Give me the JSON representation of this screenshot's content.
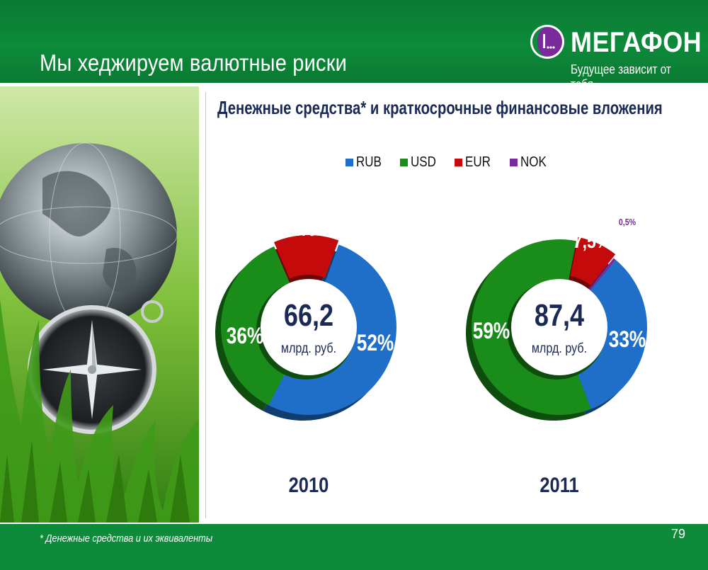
{
  "header": {
    "title": "Мы хеджируем валютные риски",
    "logo_name": "МЕГАФОН",
    "logo_tagline": "Будущее зависит от тебя"
  },
  "footer": {
    "footnote": "* Денежные средства и их эквиваленты",
    "page_number": "79"
  },
  "colors": {
    "header_green": "#0d8a3a",
    "rub": "#1f6fc8",
    "usd": "#1a8c1a",
    "eur": "#c40a0a",
    "nok": "#7a2a9a",
    "label_dark": "#1b2a55"
  },
  "chart_data": {
    "type": "pie",
    "title": "Денежные средства* и краткосрочные финансовые вложения",
    "legend": [
      {
        "name": "RUB",
        "color": "#1f6fc8"
      },
      {
        "name": "USD",
        "color": "#1a8c1a"
      },
      {
        "name": "EUR",
        "color": "#c40a0a"
      },
      {
        "name": "NOK",
        "color": "#7a2a9a"
      }
    ],
    "legend_position": "top",
    "charts": [
      {
        "year": "2010",
        "total": "66,2",
        "unit": "млрд. руб.",
        "slices": [
          {
            "name": "RUB",
            "value": 52,
            "label": "52%"
          },
          {
            "name": "USD",
            "value": 36,
            "label": "36%"
          },
          {
            "name": "EUR",
            "value": 12,
            "label": "12%"
          }
        ]
      },
      {
        "year": "2011",
        "total": "87,4",
        "unit": "млрд. руб.",
        "slices": [
          {
            "name": "RUB",
            "value": 33,
            "label": "33%"
          },
          {
            "name": "USD",
            "value": 59,
            "label": "59%"
          },
          {
            "name": "EUR",
            "value": 7.5,
            "label": "7,5%"
          },
          {
            "name": "NOK",
            "value": 0.5,
            "label": "0,5%"
          }
        ]
      }
    ]
  }
}
